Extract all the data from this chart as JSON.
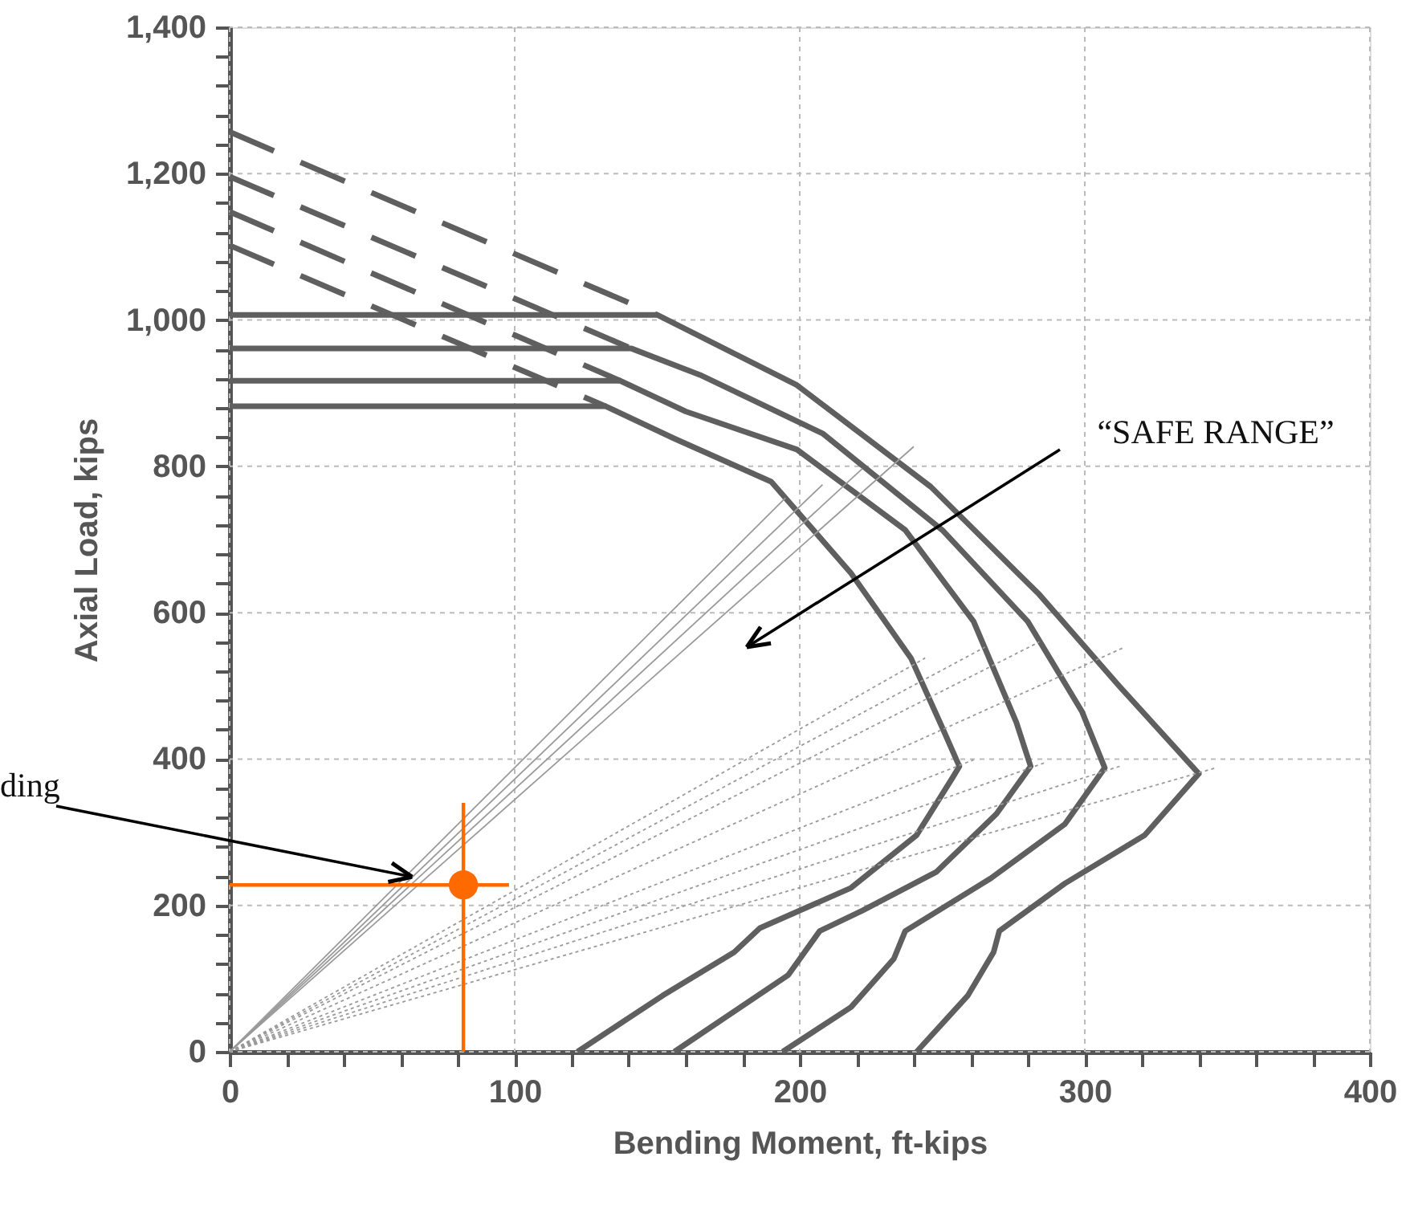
{
  "chart_data": {
    "type": "line",
    "xlabel": "Bending Moment, ft-kips",
    "ylabel": "Axial Load, kips",
    "xlim": [
      0,
      400
    ],
    "ylim": [
      0,
      1400
    ],
    "xticks": [
      0,
      {
        "value": 20,
        "label": null
      },
      {
        "value": 40,
        "label": null
      },
      {
        "value": 60,
        "label": null
      },
      {
        "value": 80,
        "label": null
      },
      100,
      {
        "value": 120,
        "label": null
      },
      {
        "value": 140,
        "label": null
      },
      {
        "value": 160,
        "label": null
      },
      {
        "value": 180,
        "label": null
      },
      200,
      {
        "value": 220,
        "label": null
      },
      {
        "value": 240,
        "label": null
      },
      {
        "value": 260,
        "label": null
      },
      {
        "value": 280,
        "label": null
      },
      300,
      {
        "value": 320,
        "label": null
      },
      {
        "value": 340,
        "label": null
      },
      {
        "value": 360,
        "label": null
      },
      {
        "value": 380,
        "label": null
      },
      400
    ],
    "yticks": [
      0,
      {
        "value": 40,
        "label": null
      },
      {
        "value": 80,
        "label": null
      },
      {
        "value": 120,
        "label": null
      },
      {
        "value": 160,
        "label": null
      },
      200,
      {
        "value": 240,
        "label": null
      },
      {
        "value": 280,
        "label": null
      },
      {
        "value": 320,
        "label": null
      },
      {
        "value": 360,
        "label": null
      },
      400,
      {
        "value": 440,
        "label": null
      },
      {
        "value": 480,
        "label": null
      },
      {
        "value": 520,
        "label": null
      },
      {
        "value": 560,
        "label": null
      },
      600,
      {
        "value": 640,
        "label": null
      },
      {
        "value": 680,
        "label": null
      },
      {
        "value": 720,
        "label": null
      },
      {
        "value": 760,
        "label": null
      },
      800,
      {
        "value": 840,
        "label": null
      },
      {
        "value": 880,
        "label": null
      },
      {
        "value": 920,
        "label": null
      },
      {
        "value": 960,
        "label": null
      },
      {
        "value": 1000,
        "label": "1,000"
      },
      {
        "value": 1040,
        "label": null
      },
      {
        "value": 1080,
        "label": null
      },
      {
        "value": 1120,
        "label": null
      },
      {
        "value": 1160,
        "label": null
      },
      {
        "value": 1200,
        "label": "1,200"
      },
      {
        "value": 1240,
        "label": null
      },
      {
        "value": 1280,
        "label": null
      },
      {
        "value": 1320,
        "label": null
      },
      {
        "value": 1360,
        "label": null
      },
      {
        "value": 1400,
        "label": "1,400"
      }
    ],
    "grid": true,
    "series": [
      {
        "color": "#5f5f5f",
        "line_style": "solid",
        "x": [
          0,
          132,
          156,
          190,
          218,
          239,
          250,
          256,
          254,
          241,
          218,
          186,
          177,
          152,
          122
        ],
        "values": [
          882,
          882,
          838,
          779,
          654,
          538,
          443,
          390,
          377,
          296,
          224,
          169,
          136,
          77,
          0
        ]
      },
      {
        "color": "#5f5f5f",
        "line_style": "solid",
        "x": [
          0,
          137,
          160,
          199,
          237,
          261,
          276,
          281,
          269,
          248,
          222,
          207,
          196,
          156
        ],
        "values": [
          917,
          917,
          875,
          823,
          713,
          588,
          450,
          390,
          325,
          246,
          193,
          165,
          105,
          0
        ]
      },
      {
        "color": "#5f5f5f",
        "line_style": "solid",
        "x": [
          0,
          141,
          165,
          208,
          250,
          280,
          299,
          307,
          293,
          267,
          237,
          233,
          218,
          194
        ],
        "values": [
          961,
          961,
          925,
          845,
          713,
          588,
          465,
          388,
          311,
          237,
          165,
          127,
          61,
          0
        ]
      },
      {
        "color": "#5f5f5f",
        "line_style": "solid",
        "x": [
          0,
          150,
          199,
          246,
          284,
          312,
          340,
          321,
          293,
          270,
          268,
          259,
          241
        ],
        "values": [
          1007,
          1007,
          911,
          772,
          625,
          500,
          380,
          296,
          230,
          165,
          136,
          77,
          0
        ]
      },
      {
        "color": "#5f5f5f",
        "line_style": "dashed",
        "x": [
          0,
          150
        ],
        "values": [
          1257,
          1007
        ]
      },
      {
        "color": "#5f5f5f",
        "line_style": "dashed",
        "x": [
          0,
          141
        ],
        "values": [
          1196,
          961
        ]
      },
      {
        "color": "#5f5f5f",
        "line_style": "dashed",
        "x": [
          0,
          137
        ],
        "values": [
          1148,
          917
        ]
      },
      {
        "color": "#5f5f5f",
        "line_style": "dashed",
        "x": [
          0,
          132
        ],
        "values": [
          1102,
          882
        ]
      },
      {
        "color": "#9a9a9a",
        "line_style": "solid",
        "x": [
          0,
          240
        ],
        "values": [
          0,
          827
        ]
      },
      {
        "color": "#9a9a9a",
        "line_style": "solid",
        "x": [
          0,
          222
        ],
        "values": [
          0,
          797
        ]
      },
      {
        "color": "#9a9a9a",
        "line_style": "solid",
        "x": [
          0,
          208
        ],
        "values": [
          0,
          775
        ]
      },
      {
        "color": "#9a9a9a",
        "line_style": "solid",
        "x": [
          0,
          195
        ],
        "values": [
          0,
          757
        ]
      },
      {
        "color": "#9a9a9a",
        "line_style": "dotted",
        "x": [
          0,
          244
        ],
        "values": [
          0,
          538
        ]
      },
      {
        "color": "#9a9a9a",
        "line_style": "dotted",
        "x": [
          0,
          265
        ],
        "values": [
          0,
          553
        ]
      },
      {
        "color": "#9a9a9a",
        "line_style": "dotted",
        "x": [
          0,
          284
        ],
        "values": [
          0,
          560
        ]
      },
      {
        "color": "#9a9a9a",
        "line_style": "dotted",
        "x": [
          0,
          314
        ],
        "values": [
          0,
          553
        ]
      },
      {
        "color": "#9a9a9a",
        "line_style": "dotted",
        "x": [
          0,
          261
        ],
        "values": [
          0,
          399
        ]
      },
      {
        "color": "#9a9a9a",
        "line_style": "dotted",
        "x": [
          0,
          286
        ],
        "values": [
          0,
          395
        ]
      },
      {
        "color": "#9a9a9a",
        "line_style": "dotted",
        "x": [
          0,
          313
        ],
        "values": [
          0,
          391
        ]
      },
      {
        "color": "#9a9a9a",
        "line_style": "dotted",
        "x": [
          0,
          346
        ],
        "values": [
          0,
          388
        ]
      },
      {
        "color": "#ff6a00",
        "line_style": "solid",
        "x": [
          82,
          82
        ],
        "values": [
          0,
          340
        ]
      },
      {
        "color": "#ff6a00",
        "line_style": "solid",
        "x": [
          0,
          98
        ],
        "values": [
          228,
          228
        ]
      },
      {
        "type": "scatter",
        "color": "#ff6a00",
        "x": [
          82
        ],
        "values": [
          228
        ]
      }
    ],
    "annotations": [
      "“SAFE RANGE”",
      {
        "text": "ding",
        "x": 64,
        "y": 239
      }
    ]
  }
}
